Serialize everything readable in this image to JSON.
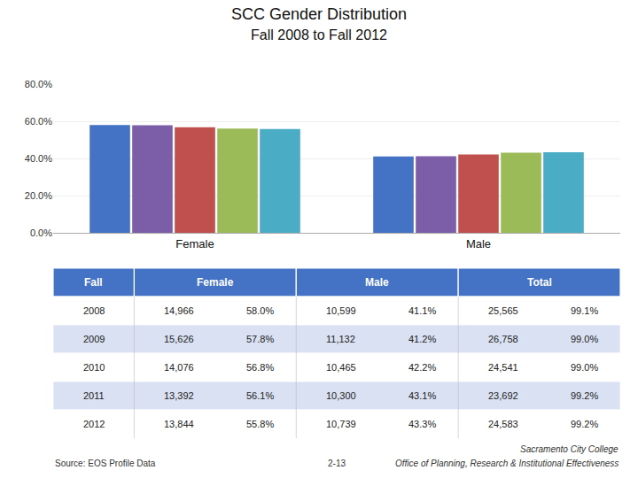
{
  "chart_data": {
    "type": "bar",
    "title": "SCC Gender Distribution",
    "subtitle": "Fall 2008 to Fall 2012",
    "categories": [
      "Female",
      "Male"
    ],
    "series": [
      {
        "color": "#4472C4",
        "values": [
          58.0,
          41.1
        ]
      },
      {
        "color": "#7B5EA7",
        "values": [
          57.8,
          41.2
        ]
      },
      {
        "color": "#C0504D",
        "values": [
          56.8,
          42.2
        ]
      },
      {
        "color": "#9BBB59",
        "values": [
          56.1,
          43.1
        ]
      },
      {
        "color": "#4BACC6",
        "values": [
          55.8,
          43.3
        ]
      }
    ],
    "ylim": [
      0,
      80
    ],
    "yticks": [
      {
        "value": 0,
        "label": "0.0%"
      },
      {
        "value": 20,
        "label": "20.0%"
      },
      {
        "value": 40,
        "label": "40.0%"
      },
      {
        "value": 60,
        "label": "60.0%"
      },
      {
        "value": 80,
        "label": "80.0%"
      }
    ],
    "grid": true,
    "table": {
      "header": [
        {
          "text": "Fall",
          "span": 1
        },
        {
          "text": "Female",
          "span": 2
        },
        {
          "text": "Male",
          "span": 2
        },
        {
          "text": "Total",
          "span": 2
        }
      ],
      "rows": [
        [
          "2008",
          "14,966",
          "58.0%",
          "10,599",
          "41.1%",
          "25,565",
          "99.1%"
        ],
        [
          "2009",
          "15,626",
          "57.8%",
          "11,132",
          "41.2%",
          "26,758",
          "99.0%"
        ],
        [
          "2010",
          "14,076",
          "56.8%",
          "10,465",
          "42.2%",
          "24,541",
          "99.0%"
        ],
        [
          "2011",
          "13,392",
          "56.1%",
          "10,300",
          "43.1%",
          "23,692",
          "99.2%"
        ],
        [
          "2012",
          "13,844",
          "55.8%",
          "10,739",
          "43.3%",
          "24,583",
          "99.2%"
        ]
      ],
      "header_color": "#4472C4",
      "header_text_color": "#FFFFFF",
      "row_colors": [
        "#FFFFFF",
        "#D9E1F2"
      ]
    },
    "annotations": [
      "Source: EOS Profile Data",
      "2-13",
      "Sacramento City College",
      "Office of Planning, Research & Institutional Effectiveness"
    ]
  }
}
